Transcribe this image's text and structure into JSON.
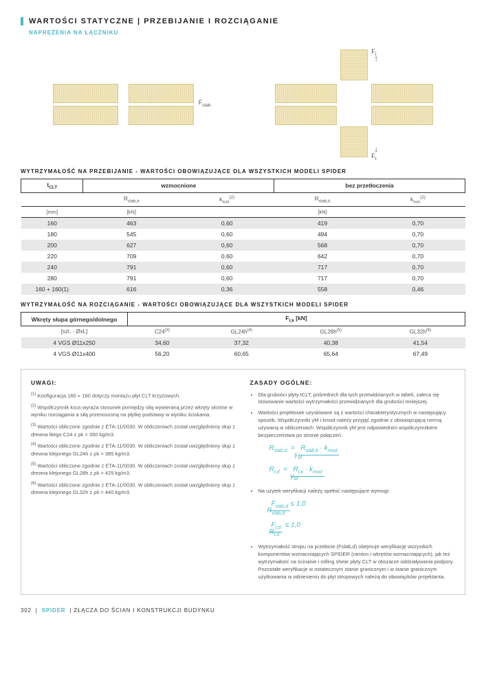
{
  "header": {
    "title": "WARTOŚCI STATYCZNE | PRZEBIJANIE I ROZCIĄGANIE",
    "subtitle": "NAPRĘŻENIA NA ŁĄCZNIKU"
  },
  "diagram": {
    "fslab": "Fslab",
    "ft_top": "Ft",
    "ft_bot": "Ft"
  },
  "table1": {
    "caption": "WYTRZYMAŁOŚĆ NA PRZEBIJANIE - WARTOŚCI OBOWIĄZUJĄCE DLA WSZYSTKICH MODELI SPIDER",
    "h_tclt": "tCLT",
    "h_wzm": "wzmocnione",
    "h_bez": "bez przetłoczenia",
    "h_rslab": "Rslab,k",
    "h_ksus": "ksus(2)",
    "u_mm": "[mm]",
    "u_kn": "[kN]",
    "rows": [
      {
        "t": "160",
        "r1": "463",
        "k1": "0,60",
        "r2": "419",
        "k2": "0,70"
      },
      {
        "t": "180",
        "r1": "545",
        "k1": "0,60",
        "r2": "494",
        "k2": "0,70"
      },
      {
        "t": "200",
        "r1": "627",
        "k1": "0,60",
        "r2": "568",
        "k2": "0,70"
      },
      {
        "t": "220",
        "r1": "709",
        "k1": "0,60",
        "r2": "642",
        "k2": "0,70"
      },
      {
        "t": "240",
        "r1": "791",
        "k1": "0,60",
        "r2": "717",
        "k2": "0,70"
      },
      {
        "t": "280",
        "r1": "791",
        "k1": "0,60",
        "r2": "717",
        "k2": "0,70"
      },
      {
        "t": "160 + 160(1)",
        "r1": "616",
        "k1": "0,36",
        "r2": "558",
        "k2": "0,46"
      }
    ]
  },
  "table2": {
    "caption": "WYTRZYMAŁOŚĆ NA ROZCIĄGANIE - WARTOŚCI OBOWIĄZUJĄCE DLA WSZYSTKICH MODELI SPIDER",
    "h_wkr": "Wkręty słupa górnego/dolnego",
    "h_ftk": "Ft,k [kN]",
    "h_szt": "[szt. - ØxL]",
    "h_c24": "C24(3)",
    "h_gl24": "GL24h(4)",
    "h_gl28": "GL28h(5)",
    "h_gl32": "GL32h(6)",
    "rows": [
      {
        "w": "4 VGS Ø11x250",
        "c24": "34,60",
        "g24": "37,32",
        "g28": "40,38",
        "g32": "41,54"
      },
      {
        "w": "4 VGS Ø11x400",
        "c24": "56,20",
        "g24": "60,65",
        "g28": "65,64",
        "g32": "67,49"
      }
    ]
  },
  "notes": {
    "head1": "UWAGI:",
    "n1": "Konfiguracja 160 + 160 dotyczy montażu płyt CLT krzyżowych.",
    "n2": "Współczynnik ksus wyraża stosunek pomiędzy siłą wywieraną przez wkręty skośne w wyniku rozciągania a siłą przenoszoną na płytkę podstawy w wyniku ściskania.",
    "n3": "Wartości obliczone zgodnie z ETA-11/0030. W obliczeniach został uwzględniony słup z drewna litego C24 z ρk = 350 kg/m3.",
    "n4": "Wartości obliczone zgodnie z ETA-11/0030. W obliczeniach został uwzględniony słup z drewna klejonego GL24h z ρk = 385 kg/m3.",
    "n5": "Wartości obliczone zgodnie z ETA-11/0030. W obliczeniach został uwzględniony słup z drewna klejonego GL28h z ρk = 425 kg/m3.",
    "n6": "Wartości obliczone zgodnie z ETA-11/0030. W obliczeniach został uwzględniony słup z drewna klejonego GL32h z ρk = 440 kg/m3.",
    "head2": "ZASADY OGÓLNE:",
    "g1": "Dla grubości płyty tCLT, pośrednich dla tych przewidzianych w tabeli, zaleca się stosowanie wartości wytrzymałości przewidzianych dla grubości mniejszej.",
    "g2": "Wartości projektowe uzyskiwane są z wartości charakterystycznych w następujący sposób. Współczynniki γM i kmod należy przyjąć zgodnie z obowiązującą normą używaną w obliczeniach. Współczynnik γM jest odpowiednim współczynnikiem bezpieczeństwa po stronie połączeń.",
    "g3": "Na użytek weryfikacji należy spełnić następujące wymogi:",
    "g4": "Wytrzymałość stropu na przebicie (Fslab,d) obejmuje weryfikację wszystkich komponentów wzmacniających SPIDER (ramion i wkrętów wzmacniających), jak też wytrzymałość na ścinanie i rolling shear płyty CLT w obszarze oddziaływania podpory. Pozostałe weryfikacje w ostatecznym stanie granicznym i w stanie granicznym użytkowania w odniesieniu do płyt stropowych należą do obowiązków projektanta."
  },
  "footer": {
    "page": "302",
    "brand": "SPIDER",
    "rest": "| ZŁĄCZA DO ŚCIAN I KONSTRUKCJI BUDYNKU"
  }
}
